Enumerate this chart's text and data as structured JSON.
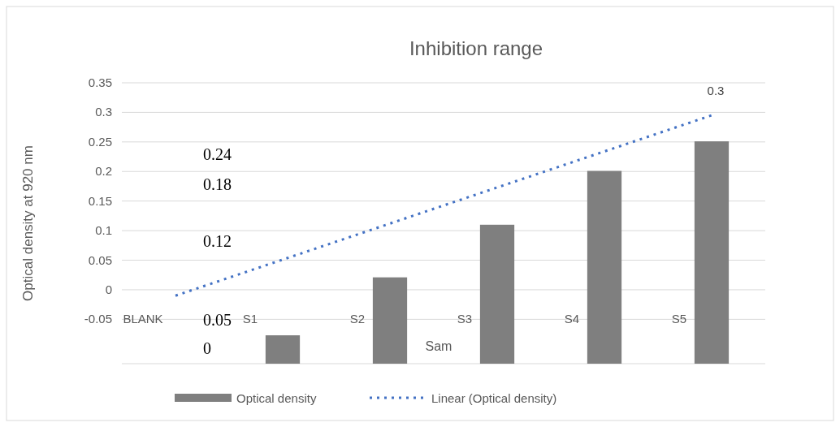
{
  "chart_data": {
    "type": "bar",
    "title": "Inhibition range",
    "xlabel": "Sam",
    "ylabel": "Optical density at 920 nm",
    "categories": [
      "BLANK",
      "S1",
      "S2",
      "S3",
      "S4",
      "S5"
    ],
    "series": [
      {
        "name": "Optical density",
        "color": "#7f7f7f",
        "base": [
          null,
          -0.125,
          -0.125,
          -0.125,
          -0.125,
          -0.125
        ],
        "values": [
          null,
          0.048,
          0.146,
          0.235,
          0.326,
          0.376
        ]
      },
      {
        "name": "Linear (Optical density)",
        "type": "line",
        "color": "#4472c4",
        "line_style": "dotted",
        "values": [
          -0.01,
          0.051,
          0.112,
          0.173,
          0.234,
          0.295
        ]
      }
    ],
    "annotations": [
      "0.3",
      "0.24",
      "0.18",
      "0.12",
      "0.05",
      "0"
    ],
    "ylim": [
      -0.125,
      0.35
    ],
    "yticks": [
      -0.05,
      0,
      0.05,
      0.1,
      0.15,
      0.2,
      0.25,
      0.3,
      0.35
    ],
    "grid": "y",
    "legend": "bottom"
  }
}
